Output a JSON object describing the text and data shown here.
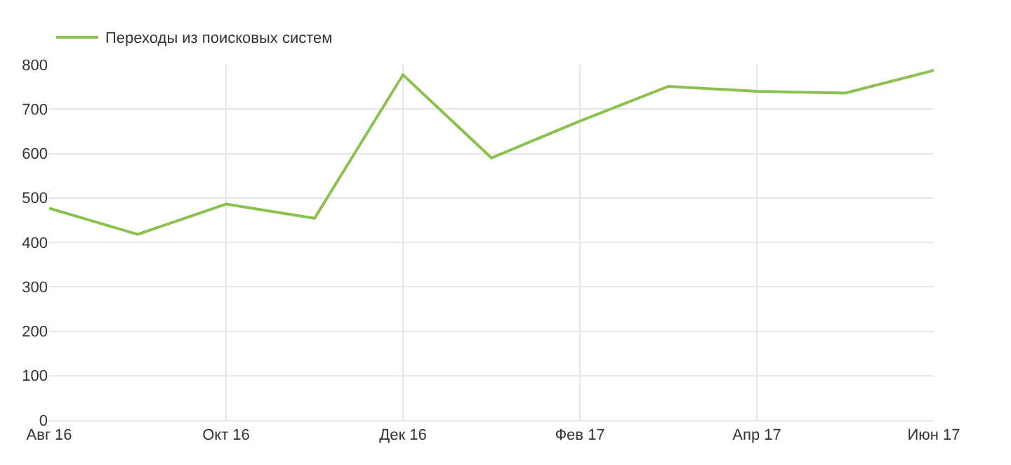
{
  "chart_data": {
    "type": "line",
    "categories": [
      "Авг 16",
      null,
      "Окт 16",
      null,
      "Дек 16",
      null,
      "Фев 17",
      null,
      "Апр 17",
      null,
      "Июн 17"
    ],
    "series": [
      {
        "name": "Переходы из поисковых систем",
        "color": "#8cc152",
        "values": [
          477,
          418,
          486,
          454,
          777,
          590,
          673,
          751,
          740,
          736,
          787
        ]
      }
    ],
    "ylim": [
      0,
      800
    ],
    "yticks": [
      0,
      100,
      200,
      300,
      400,
      500,
      600,
      700,
      800
    ],
    "grid": true,
    "legend": "top left",
    "marker": "none",
    "line_style": "solid"
  }
}
